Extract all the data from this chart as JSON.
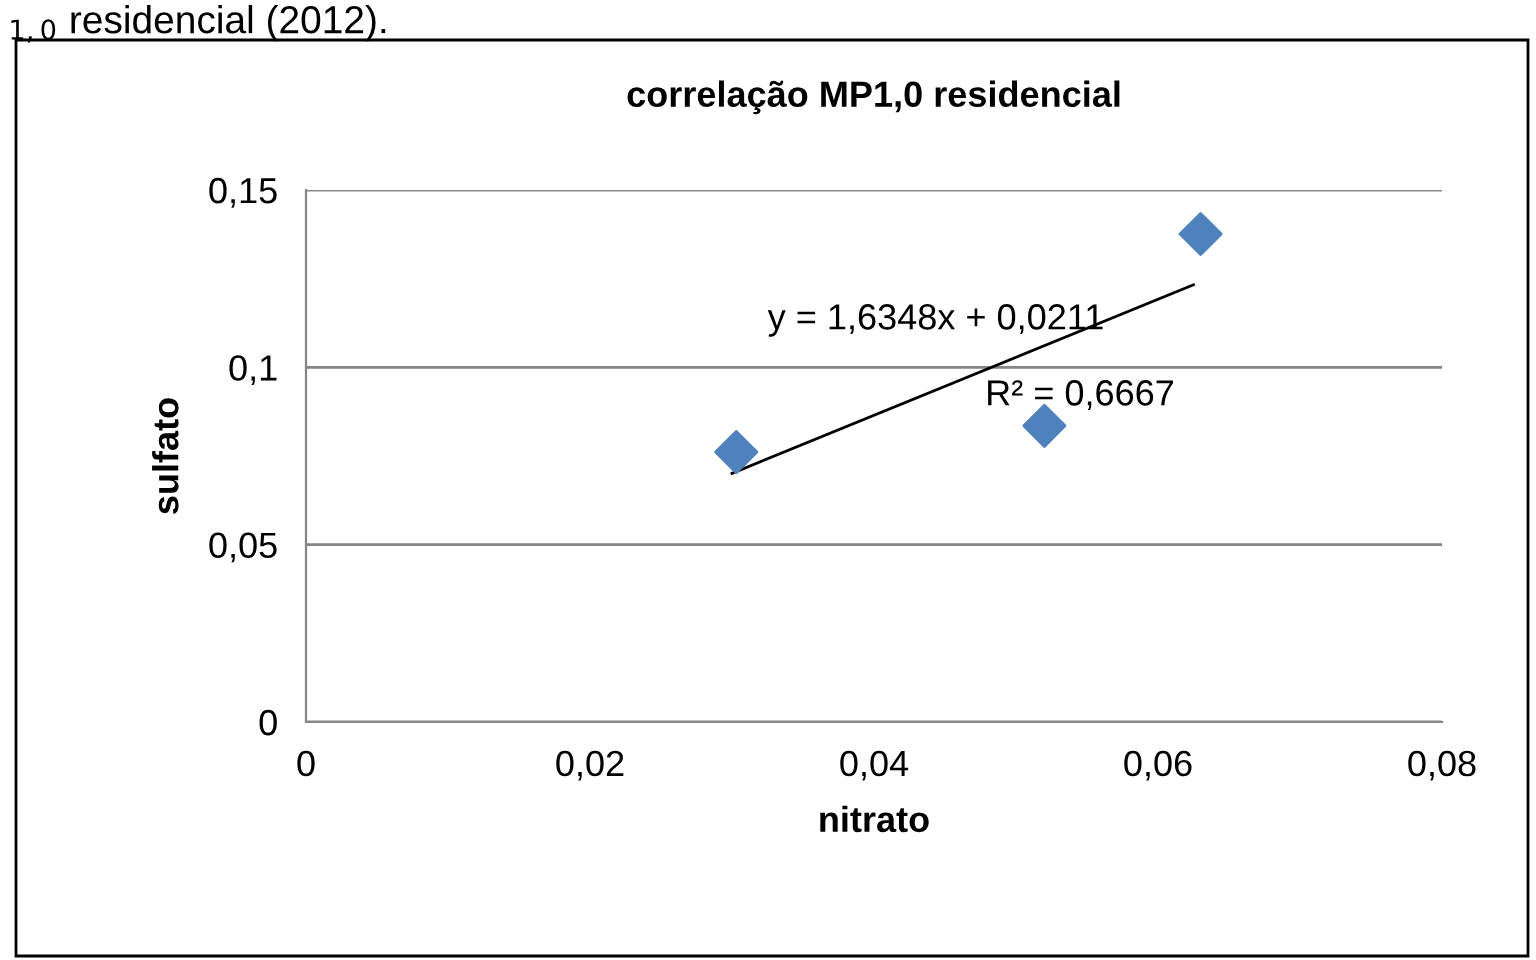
{
  "chart_data": {
    "type": "scatter",
    "title": "correlação MP1,0 residencial",
    "xlabel": "nitrato",
    "ylabel": "sulfato",
    "x": [
      0.0303,
      0.052,
      0.063
    ],
    "series": [
      {
        "type": "scatter",
        "color": "#4f81bd",
        "marker": "diamond",
        "values": [
          0.0761,
          0.0835,
          0.1376
        ]
      },
      {
        "type": "line",
        "color": "#000000",
        "marker": "none",
        "line_style": "solid",
        "x": [
          0.03,
          0.0625
        ],
        "values": [
          0.0701,
          0.1233
        ]
      }
    ],
    "xlim": [
      0,
      0.08
    ],
    "ylim": [
      0,
      0.15
    ],
    "xticks": [
      {
        "value": 0,
        "label": "0"
      },
      {
        "value": 0.02,
        "label": "0,02"
      },
      {
        "value": 0.04,
        "label": "0,04"
      },
      {
        "value": 0.06,
        "label": "0,06"
      },
      {
        "value": 0.08,
        "label": "0,08"
      }
    ],
    "yticks": [
      {
        "value": 0,
        "label": "0"
      },
      {
        "value": 0.05,
        "label": "0,05"
      },
      {
        "value": 0.1,
        "label": "0,1"
      },
      {
        "value": 0.15,
        "label": "0,15"
      }
    ],
    "grid": "y",
    "annotations": [
      "$_{1,0}$ residencial (2012).",
      "y = 1,6348x + 0,0211",
      "R² = 0,6667"
    ]
  }
}
